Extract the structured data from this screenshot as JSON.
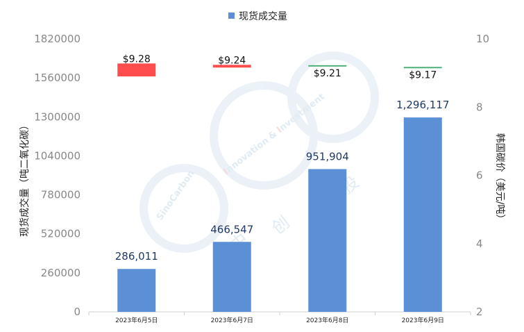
{
  "chart_data": {
    "type": "bar",
    "legend": {
      "label": "现货成交量",
      "color": "#5b8fd6",
      "position": "top-center"
    },
    "categories": [
      "2023年6月5日",
      "2023年6月7日",
      "2023年6月8日",
      "2023年6月9日"
    ],
    "series": [
      {
        "name": "现货成交量",
        "axis": "left",
        "color": "#5b8fd6",
        "values": [
          286011,
          466547,
          951904,
          1296117
        ],
        "value_labels": [
          "286,011",
          "466,547",
          "951,904",
          "1,296,117"
        ]
      },
      {
        "type": "candlestick",
        "axis": "right",
        "open": [
          9.28,
          9.24,
          9.21,
          9.17
        ],
        "close": [
          8.9,
          9.16,
          9.23,
          9.18
        ],
        "high": [
          9.28,
          9.24,
          9.23,
          9.18
        ],
        "low": [
          8.9,
          9.16,
          9.21,
          9.17
        ],
        "colors": [
          "#ff4d4d",
          "#ff4d4d",
          "#4caf78",
          "#4caf78"
        ],
        "price_labels": [
          "$9.28",
          "$9.24",
          "$9.21",
          "$9.17"
        ]
      }
    ],
    "ylabel": "现货成交量（吨二氧化碳）",
    "y2label": "韩国碳价（美元/吨）",
    "ylim": [
      0,
      1820000
    ],
    "yticks": [
      "0",
      "260000",
      "520000",
      "780000",
      "1040000",
      "1300000",
      "1560000",
      "1820000"
    ],
    "y2lim": [
      2,
      10
    ],
    "y2ticks": [
      "2",
      "4",
      "6",
      "8",
      "10"
    ],
    "grid": false
  },
  "watermark": {
    "brand": "SinoCarbon",
    "letter_i": "I",
    "word_innovation": "nnovation",
    "amp": "&",
    "word_investment": "nvestment",
    "chars": [
      "中",
      "创",
      "投"
    ]
  }
}
